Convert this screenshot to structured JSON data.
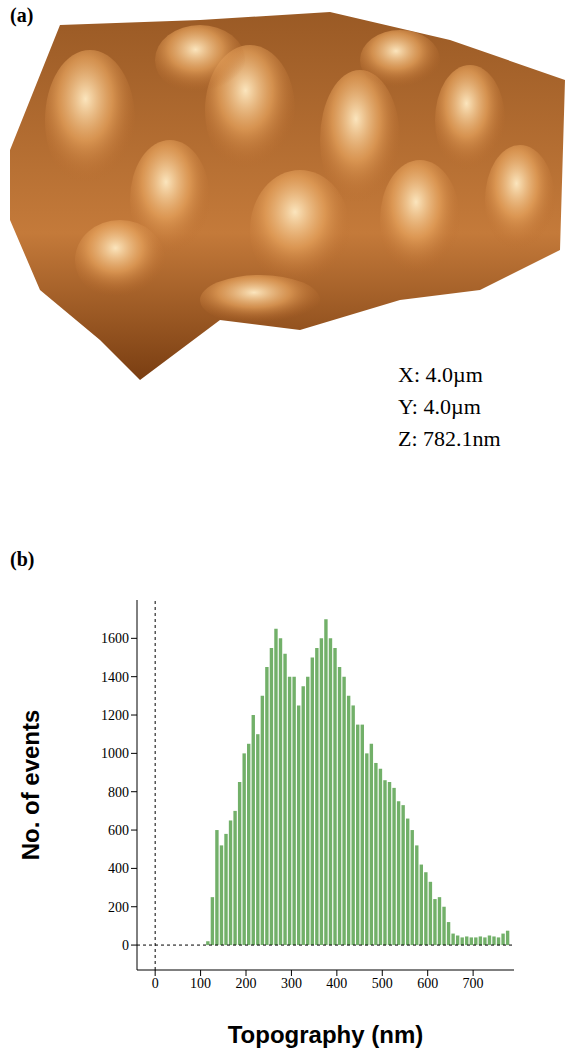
{
  "image_panel": {
    "panel_label": "(a)",
    "scale_labels": [
      "X: 4.0µm",
      "Y: 4.0µm",
      "Z: 782.1nm"
    ]
  },
  "chart_data": {
    "panel_label": "(b)",
    "type": "histogram",
    "x_label": "Topography (nm)",
    "y_label": "No. of events",
    "bins": [
      110,
      120,
      130,
      140,
      150,
      160,
      170,
      180,
      190,
      200,
      210,
      220,
      230,
      240,
      250,
      260,
      270,
      280,
      290,
      300,
      310,
      320,
      330,
      340,
      350,
      360,
      370,
      380,
      390,
      400,
      410,
      420,
      430,
      440,
      450,
      460,
      470,
      480,
      490,
      500,
      510,
      520,
      530,
      540,
      550,
      560,
      570,
      580,
      590,
      600,
      610,
      620,
      630,
      640,
      650,
      660,
      670,
      680,
      690,
      700,
      710,
      720,
      730,
      740,
      750,
      760,
      770,
      780
    ],
    "counts": [
      20,
      250,
      600,
      520,
      580,
      650,
      700,
      850,
      1000,
      1050,
      1200,
      1100,
      1300,
      1450,
      1550,
      1650,
      1600,
      1520,
      1400,
      1400,
      1250,
      1350,
      1400,
      1500,
      1550,
      1600,
      1700,
      1600,
      1550,
      1450,
      1400,
      1300,
      1250,
      1150,
      1150,
      1000,
      1050,
      950,
      920,
      860,
      850,
      820,
      750,
      730,
      660,
      600,
      520,
      420,
      380,
      330,
      240,
      250,
      200,
      120,
      60,
      50,
      40,
      45,
      40,
      40,
      45,
      40,
      50,
      45,
      40,
      60,
      75
    ],
    "color": "#72b069",
    "xlim": [
      -40,
      790
    ],
    "xticks": [
      0,
      100,
      200,
      300,
      400,
      500,
      600,
      700
    ],
    "ylim": [
      -130,
      1800
    ],
    "yticks": [
      0,
      200,
      400,
      600,
      800,
      1000,
      1200,
      1400,
      1600
    ]
  }
}
